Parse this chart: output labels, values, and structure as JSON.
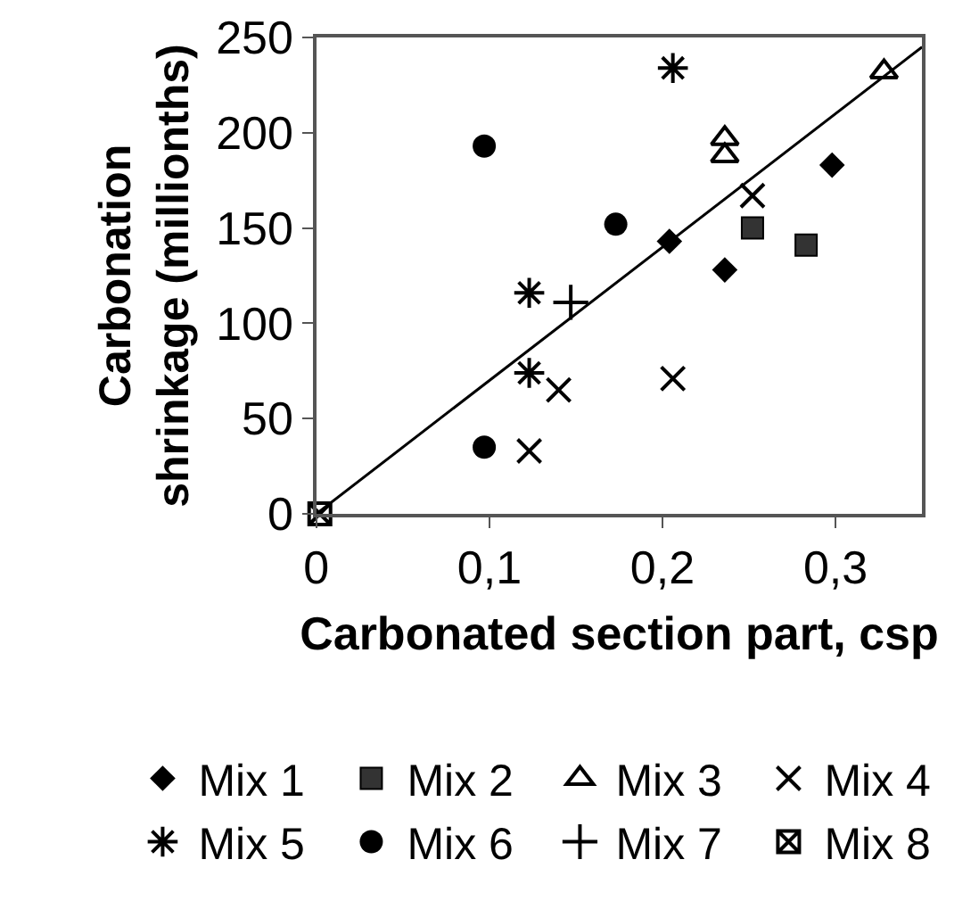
{
  "chart_data": {
    "type": "scatter",
    "xlabel": "Carbonated section part, csp",
    "ylabel": "Carbonation\nshrinkage (millionths)",
    "xlim": [
      0,
      0.35
    ],
    "xticks": [
      0,
      {
        "value": 0.1,
        "label": "0,1"
      },
      {
        "value": 0.2,
        "label": "0,2"
      },
      {
        "value": 0.3,
        "label": "0,3"
      }
    ],
    "ylim": [
      0,
      250
    ],
    "yticks": [
      0,
      50,
      100,
      150,
      200,
      250
    ],
    "legend": "bottom",
    "series": [
      {
        "name": "Mix 1",
        "color": "#000000",
        "marker": "diamond",
        "x": [
          0.204,
          0.236,
          0.298
        ],
        "values": [
          143,
          128,
          183
        ]
      },
      {
        "name": "Mix 2",
        "color": "#333333",
        "marker": "square",
        "x": [
          0.252,
          0.283
        ],
        "values": [
          150,
          141
        ]
      },
      {
        "name": "Mix 3",
        "color": "#000000",
        "marker": "triangle-open",
        "x": [
          0.236,
          0.236,
          0.328
        ],
        "values": [
          197,
          188,
          232
        ]
      },
      {
        "name": "Mix 4",
        "color": "#000000",
        "marker": "x",
        "x": [
          0.123,
          0.14,
          0.206,
          0.252
        ],
        "values": [
          33,
          65,
          71,
          167
        ]
      },
      {
        "name": "Mix 5",
        "color": "#000000",
        "marker": "cross",
        "x": [
          0.123,
          0.123,
          0.206
        ],
        "values": [
          74,
          116,
          234
        ]
      },
      {
        "name": "Mix 6",
        "color": "#000000",
        "marker": "circle",
        "x": [
          0.097,
          0.097,
          0.173
        ],
        "values": [
          35,
          193,
          152
        ]
      },
      {
        "name": "Mix 7",
        "color": "#000000",
        "marker": "plus",
        "x": [
          0.147
        ],
        "values": [
          111
        ]
      },
      {
        "name": "Mix 8",
        "color": "#000000",
        "marker": "cross",
        "x": [
          0.002
        ],
        "values": [
          0
        ]
      },
      {
        "type": "line",
        "color": "#000000",
        "marker": "none",
        "line_style": "solid",
        "x": [
          0,
          0.35
        ],
        "values": [
          0,
          245
        ]
      }
    ]
  }
}
